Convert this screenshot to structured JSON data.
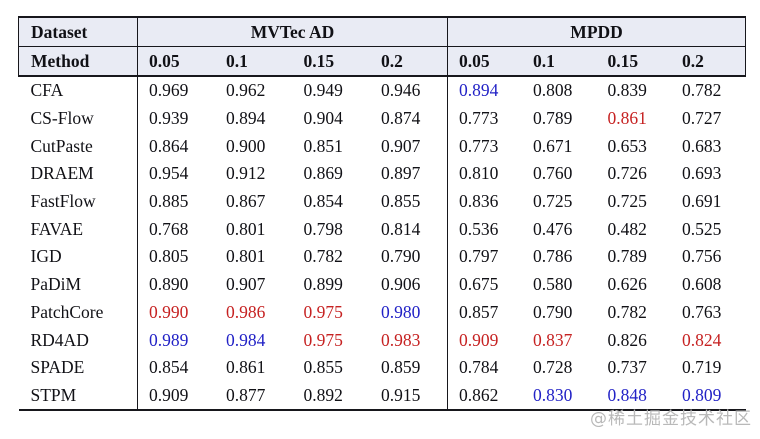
{
  "colors": {
    "best_red": "#c62222",
    "second_blue": "#2222c6",
    "header_bg": "#e9ebf4",
    "border": "#17171c",
    "text": "#111116",
    "watermark": "#b9b9b9"
  },
  "table": {
    "group_headers": [
      {
        "label": "Dataset",
        "span": 1
      },
      {
        "label": "MVTec AD",
        "span": 4
      },
      {
        "label": "MPDD",
        "span": 4
      }
    ],
    "sub_headers": [
      "Method",
      "0.05",
      "0.1",
      "0.15",
      "0.2",
      "0.05",
      "0.1",
      "0.15",
      "0.2"
    ],
    "rows": [
      {
        "method": "CFA",
        "values": [
          {
            "v": "0.969",
            "c": "black"
          },
          {
            "v": "0.962",
            "c": "black"
          },
          {
            "v": "0.949",
            "c": "black"
          },
          {
            "v": "0.946",
            "c": "black"
          },
          {
            "v": "0.894",
            "c": "blue"
          },
          {
            "v": "0.808",
            "c": "black"
          },
          {
            "v": "0.839",
            "c": "black"
          },
          {
            "v": "0.782",
            "c": "black"
          }
        ]
      },
      {
        "method": "CS-Flow",
        "values": [
          {
            "v": "0.939",
            "c": "black"
          },
          {
            "v": "0.894",
            "c": "black"
          },
          {
            "v": "0.904",
            "c": "black"
          },
          {
            "v": "0.874",
            "c": "black"
          },
          {
            "v": "0.773",
            "c": "black"
          },
          {
            "v": "0.789",
            "c": "black"
          },
          {
            "v": "0.861",
            "c": "red"
          },
          {
            "v": "0.727",
            "c": "black"
          }
        ]
      },
      {
        "method": "CutPaste",
        "values": [
          {
            "v": "0.864",
            "c": "black"
          },
          {
            "v": "0.900",
            "c": "black"
          },
          {
            "v": "0.851",
            "c": "black"
          },
          {
            "v": "0.907",
            "c": "black"
          },
          {
            "v": "0.773",
            "c": "black"
          },
          {
            "v": "0.671",
            "c": "black"
          },
          {
            "v": "0.653",
            "c": "black"
          },
          {
            "v": "0.683",
            "c": "black"
          }
        ]
      },
      {
        "method": "DRAEM",
        "values": [
          {
            "v": "0.954",
            "c": "black"
          },
          {
            "v": "0.912",
            "c": "black"
          },
          {
            "v": "0.869",
            "c": "black"
          },
          {
            "v": "0.897",
            "c": "black"
          },
          {
            "v": "0.810",
            "c": "black"
          },
          {
            "v": "0.760",
            "c": "black"
          },
          {
            "v": "0.726",
            "c": "black"
          },
          {
            "v": "0.693",
            "c": "black"
          }
        ]
      },
      {
        "method": "FastFlow",
        "values": [
          {
            "v": "0.885",
            "c": "black"
          },
          {
            "v": "0.867",
            "c": "black"
          },
          {
            "v": "0.854",
            "c": "black"
          },
          {
            "v": "0.855",
            "c": "black"
          },
          {
            "v": "0.836",
            "c": "black"
          },
          {
            "v": "0.725",
            "c": "black"
          },
          {
            "v": "0.725",
            "c": "black"
          },
          {
            "v": "0.691",
            "c": "black"
          }
        ]
      },
      {
        "method": "FAVAE",
        "values": [
          {
            "v": "0.768",
            "c": "black"
          },
          {
            "v": "0.801",
            "c": "black"
          },
          {
            "v": "0.798",
            "c": "black"
          },
          {
            "v": "0.814",
            "c": "black"
          },
          {
            "v": "0.536",
            "c": "black"
          },
          {
            "v": "0.476",
            "c": "black"
          },
          {
            "v": "0.482",
            "c": "black"
          },
          {
            "v": "0.525",
            "c": "black"
          }
        ]
      },
      {
        "method": "IGD",
        "values": [
          {
            "v": "0.805",
            "c": "black"
          },
          {
            "v": "0.801",
            "c": "black"
          },
          {
            "v": "0.782",
            "c": "black"
          },
          {
            "v": "0.790",
            "c": "black"
          },
          {
            "v": "0.797",
            "c": "black"
          },
          {
            "v": "0.786",
            "c": "black"
          },
          {
            "v": "0.789",
            "c": "black"
          },
          {
            "v": "0.756",
            "c": "black"
          }
        ]
      },
      {
        "method": "PaDiM",
        "values": [
          {
            "v": "0.890",
            "c": "black"
          },
          {
            "v": "0.907",
            "c": "black"
          },
          {
            "v": "0.899",
            "c": "black"
          },
          {
            "v": "0.906",
            "c": "black"
          },
          {
            "v": "0.675",
            "c": "black"
          },
          {
            "v": "0.580",
            "c": "black"
          },
          {
            "v": "0.626",
            "c": "black"
          },
          {
            "v": "0.608",
            "c": "black"
          }
        ]
      },
      {
        "method": "PatchCore",
        "values": [
          {
            "v": "0.990",
            "c": "red"
          },
          {
            "v": "0.986",
            "c": "red"
          },
          {
            "v": "0.975",
            "c": "red"
          },
          {
            "v": "0.980",
            "c": "blue"
          },
          {
            "v": "0.857",
            "c": "black"
          },
          {
            "v": "0.790",
            "c": "black"
          },
          {
            "v": "0.782",
            "c": "black"
          },
          {
            "v": "0.763",
            "c": "black"
          }
        ]
      },
      {
        "method": "RD4AD",
        "values": [
          {
            "v": "0.989",
            "c": "blue"
          },
          {
            "v": "0.984",
            "c": "blue"
          },
          {
            "v": "0.975",
            "c": "red"
          },
          {
            "v": "0.983",
            "c": "red"
          },
          {
            "v": "0.909",
            "c": "red"
          },
          {
            "v": "0.837",
            "c": "red"
          },
          {
            "v": "0.826",
            "c": "black"
          },
          {
            "v": "0.824",
            "c": "red"
          }
        ]
      },
      {
        "method": "SPADE",
        "values": [
          {
            "v": "0.854",
            "c": "black"
          },
          {
            "v": "0.861",
            "c": "black"
          },
          {
            "v": "0.855",
            "c": "black"
          },
          {
            "v": "0.859",
            "c": "black"
          },
          {
            "v": "0.784",
            "c": "black"
          },
          {
            "v": "0.728",
            "c": "black"
          },
          {
            "v": "0.737",
            "c": "black"
          },
          {
            "v": "0.719",
            "c": "black"
          }
        ]
      },
      {
        "method": "STPM",
        "values": [
          {
            "v": "0.909",
            "c": "black"
          },
          {
            "v": "0.877",
            "c": "black"
          },
          {
            "v": "0.892",
            "c": "black"
          },
          {
            "v": "0.915",
            "c": "black"
          },
          {
            "v": "0.862",
            "c": "black"
          },
          {
            "v": "0.830",
            "c": "blue"
          },
          {
            "v": "0.848",
            "c": "blue"
          },
          {
            "v": "0.809",
            "c": "blue"
          }
        ]
      }
    ]
  },
  "watermark": "@稀土掘金技术社区"
}
